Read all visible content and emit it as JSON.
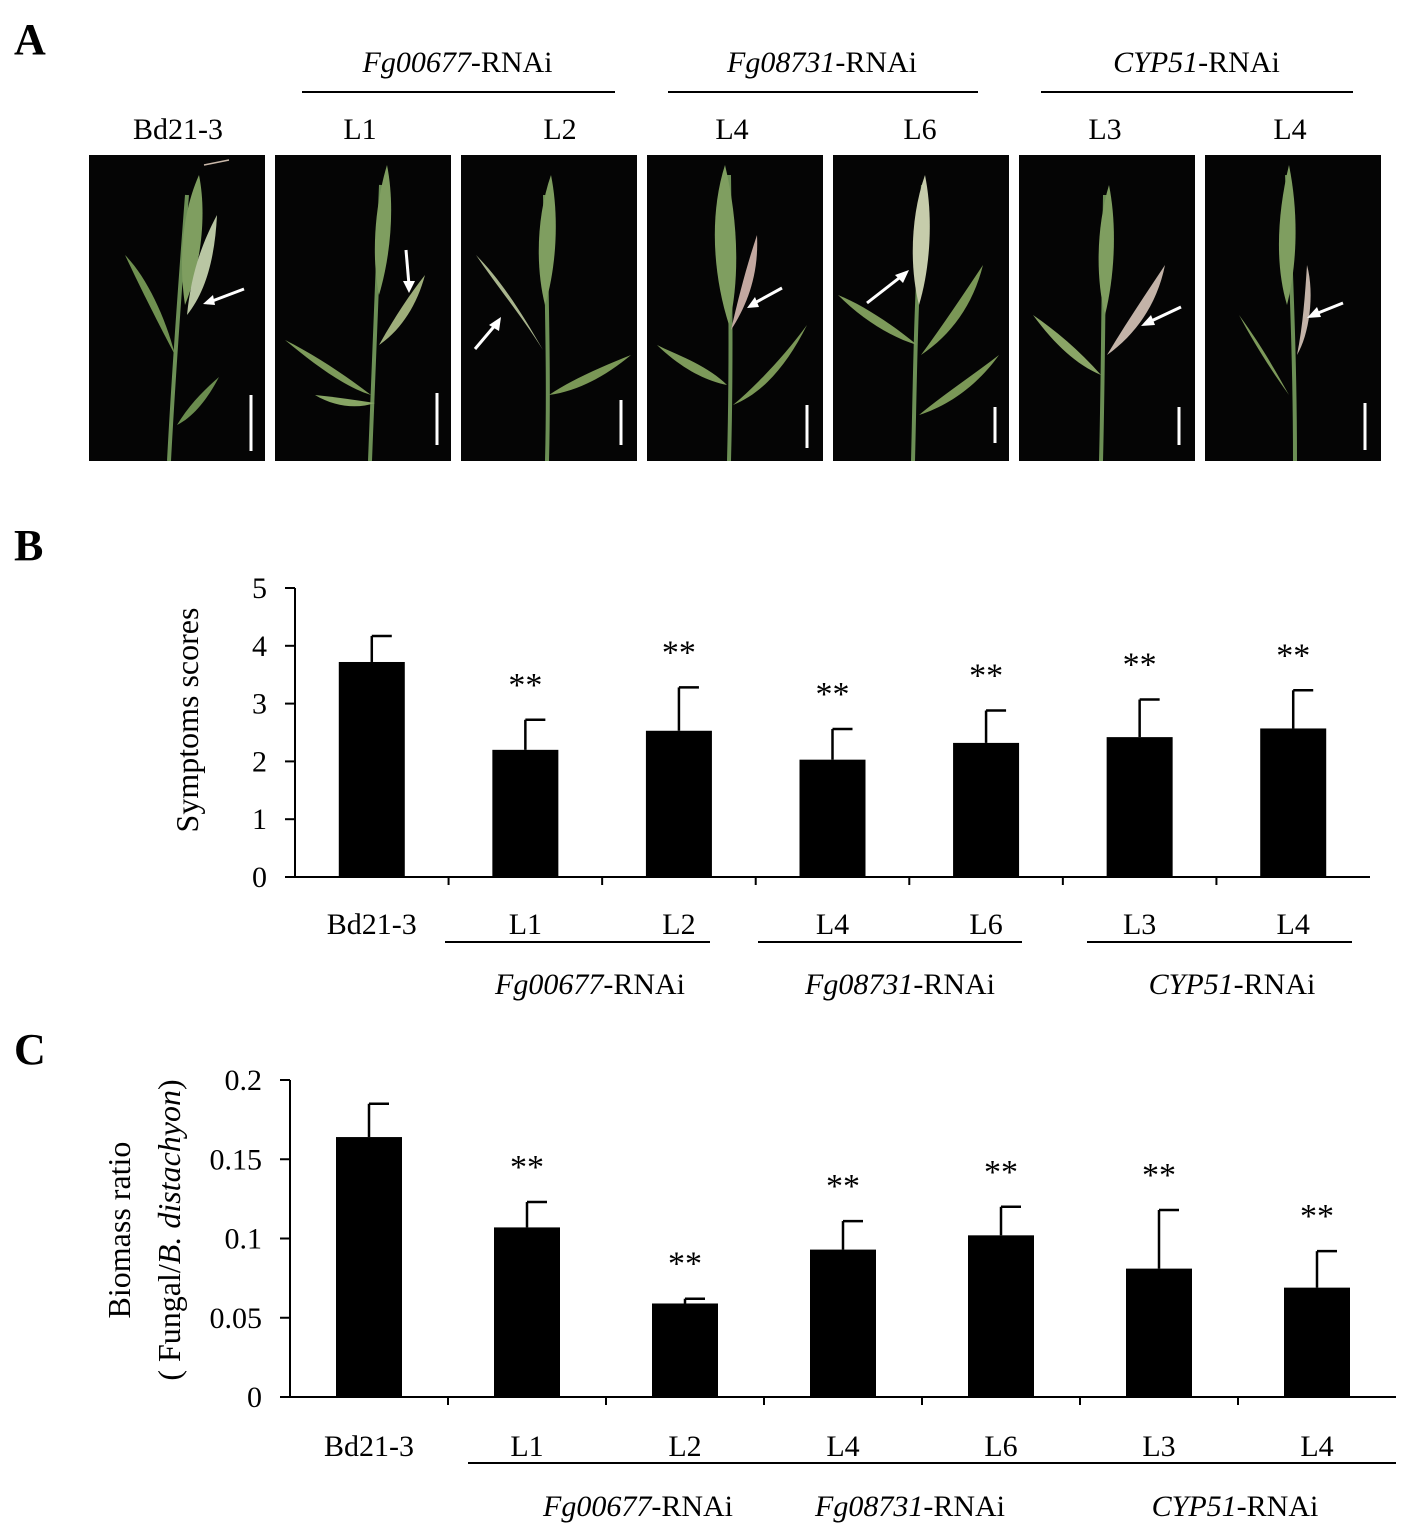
{
  "panel_a": {
    "letter": "A",
    "column_labels": [
      "Bd21-3",
      "L1",
      "L2",
      "L4",
      "L6",
      "L3",
      "L4"
    ],
    "groups": [
      {
        "italic": "Fg00677",
        "suffix": "-RNAi"
      },
      {
        "italic": "Fg08731",
        "suffix": "-RNAi"
      },
      {
        "italic": "CYP51",
        "suffix": "-RNAi"
      }
    ]
  },
  "chart_data": [
    {
      "panel": "B",
      "type": "bar",
      "ylabel": "Symptoms scores",
      "ylim": [
        0,
        5
      ],
      "yticks": [
        "0",
        "1",
        "2",
        "3",
        "4",
        "5"
      ],
      "categories": [
        "Bd21-3",
        "L1",
        "L2",
        "L4",
        "L6",
        "L3",
        "L4"
      ],
      "values": [
        3.72,
        2.2,
        2.53,
        2.03,
        2.32,
        2.42,
        2.57
      ],
      "errors": [
        0.45,
        0.52,
        0.75,
        0.53,
        0.56,
        0.65,
        0.66
      ],
      "significance": [
        "",
        "**",
        "**",
        "**",
        "**",
        "**",
        "**"
      ],
      "groups": [
        {
          "italic": "Fg00677",
          "suffix": "-RNAi"
        },
        {
          "italic": "Fg08731",
          "suffix": "-RNAi"
        },
        {
          "italic": "CYP51",
          "suffix": "-RNAi"
        }
      ]
    },
    {
      "panel": "C",
      "type": "bar",
      "ylabel_line1": "Biomass ratio",
      "ylabel_line2_prefix": "( Fungal/",
      "ylabel_line2_italic": "B. distachyon",
      "ylabel_line2_suffix": ")",
      "ylim": [
        0,
        0.2
      ],
      "yticks": [
        "0",
        "0.05",
        "0.1",
        "0.15",
        "0.2"
      ],
      "categories": [
        "Bd21-3",
        "L1",
        "L2",
        "L4",
        "L6",
        "L3",
        "L4"
      ],
      "values": [
        0.164,
        0.107,
        0.059,
        0.093,
        0.102,
        0.081,
        0.069
      ],
      "errors": [
        0.021,
        0.016,
        0.003,
        0.018,
        0.018,
        0.037,
        0.023
      ],
      "significance": [
        "",
        "**",
        "**",
        "**",
        "**",
        "**",
        "**"
      ],
      "groups": [
        {
          "italic": "Fg00677",
          "suffix": "-RNAi"
        },
        {
          "italic": "Fg08731",
          "suffix": "-RNAi"
        },
        {
          "italic": "CYP51",
          "suffix": "-RNAi"
        }
      ]
    }
  ],
  "panel_b": {
    "letter": "B"
  },
  "panel_c": {
    "letter": "C"
  }
}
